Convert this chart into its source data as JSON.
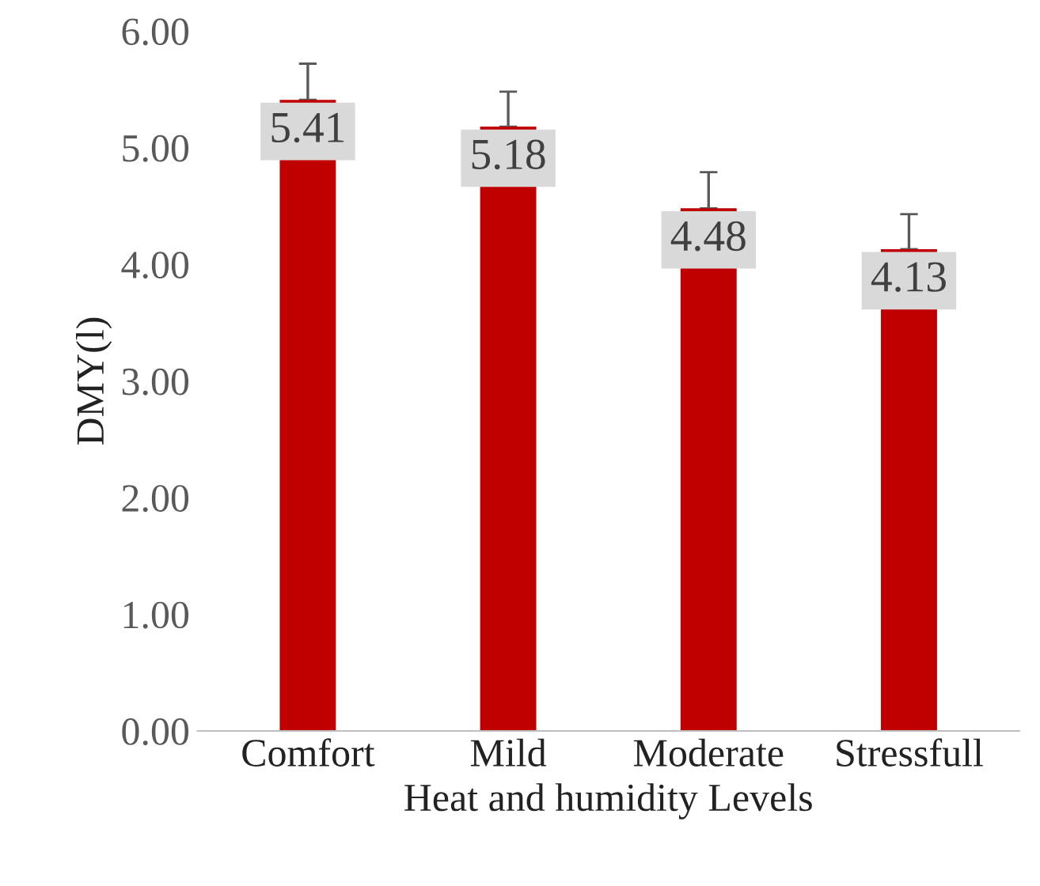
{
  "chart_data": {
    "type": "bar",
    "xlabel": "Heat and humidity Levels",
    "ylabel": "DMY(l)",
    "categories": [
      "Comfort",
      "Mild",
      "Moderate",
      "Stressfull"
    ],
    "values": [
      5.41,
      5.18,
      4.48,
      4.13
    ],
    "errors": [
      [
        5.41,
        5.72
      ],
      [
        5.18,
        5.48
      ],
      [
        4.48,
        4.79
      ],
      [
        4.13,
        4.43
      ]
    ],
    "color": "#c00000",
    "data_labels": true,
    "grid": false,
    "legend": false,
    "ylim": [
      0,
      6
    ],
    "yticks": [
      {
        "value": 0,
        "label": "0.00"
      },
      {
        "value": 1,
        "label": "1.00"
      },
      {
        "value": 2,
        "label": "2.00"
      },
      {
        "value": 3,
        "label": "3.00"
      },
      {
        "value": 4,
        "label": "4.00"
      },
      {
        "value": 5,
        "label": "5.00"
      },
      {
        "value": 6,
        "label": "6.00"
      }
    ]
  }
}
